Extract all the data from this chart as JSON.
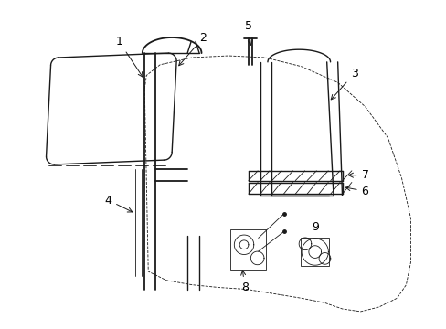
{
  "bg_color": "#ffffff",
  "line_color": "#1a1a1a",
  "lw": 1.0,
  "lw_thin": 0.6,
  "lw_thick": 1.3,
  "fig_width": 4.89,
  "fig_height": 3.6,
  "dpi": 100,
  "xlim": [
    0,
    10
  ],
  "ylim": [
    0,
    7.2
  ],
  "label_fs": 9,
  "arrow_lw": 0.7
}
